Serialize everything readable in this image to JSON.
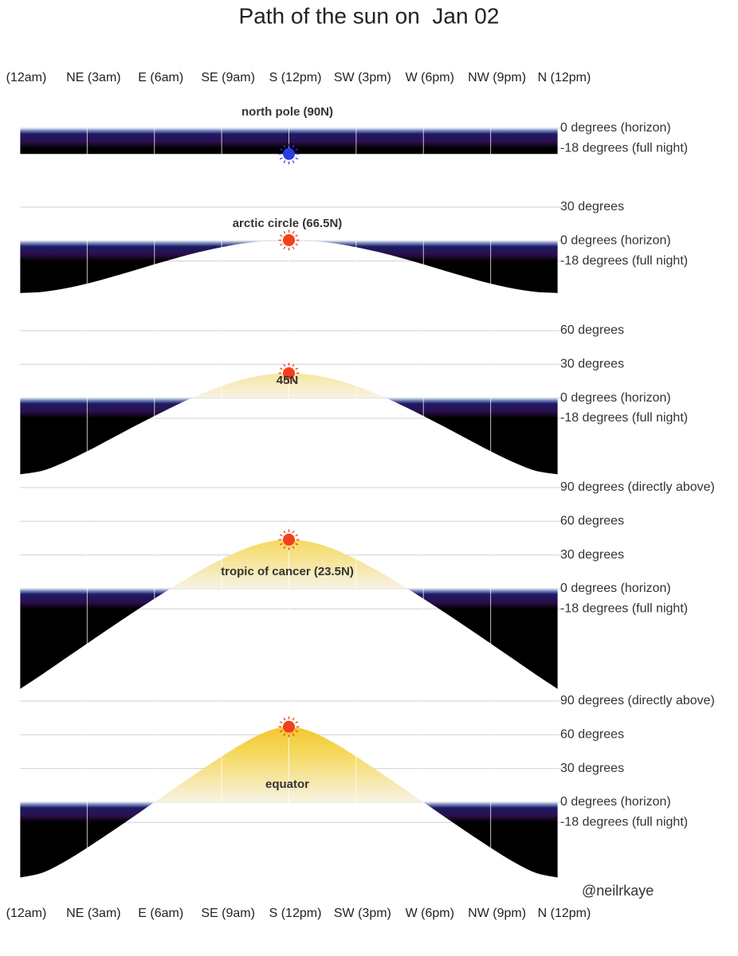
{
  "title": "Path of the sun on  Jan 02",
  "credit": "@neilrkaye",
  "xlim": [
    0,
    24
  ],
  "xticks": [
    {
      "value": 0,
      "label": "(12am)"
    },
    {
      "value": 3,
      "label": "NE (3am)"
    },
    {
      "value": 6,
      "label": "E (6am)"
    },
    {
      "value": 9,
      "label": "SE (9am)"
    },
    {
      "value": 12,
      "label": "S (12pm)"
    },
    {
      "value": 15,
      "label": "SW (3pm)"
    },
    {
      "value": 18,
      "label": "W (6pm)"
    },
    {
      "value": 21,
      "label": "NW (9pm)"
    },
    {
      "value": 24,
      "label": "N (12pm)"
    }
  ],
  "chart_data": [
    {
      "type": "area",
      "title": "north pole (90N)",
      "sun_color": "#2b3fe0",
      "x": [
        0,
        1,
        2,
        3,
        4,
        5,
        6,
        7,
        8,
        9,
        10,
        11,
        12,
        13,
        14,
        15,
        16,
        17,
        18,
        19,
        20,
        21,
        22,
        23,
        24
      ],
      "values": [
        -22.9,
        -22.9,
        -22.9,
        -22.9,
        -22.9,
        -22.9,
        -22.9,
        -22.9,
        -22.9,
        -22.9,
        -22.9,
        -22.9,
        -22.9,
        -22.9,
        -22.9,
        -22.9,
        -22.9,
        -22.9,
        -22.9,
        -22.9,
        -22.9,
        -22.9,
        -22.9,
        -22.9,
        -22.9
      ],
      "ylim": [
        -23,
        0
      ],
      "yticks": [
        {
          "value": 0,
          "label": "0 degrees (horizon)"
        },
        {
          "value": -18,
          "label": "-18 degrees (full night)"
        }
      ]
    },
    {
      "type": "area",
      "title": "arctic circle (66.5N)",
      "sun_color": "#f2401c",
      "x": [
        0,
        1,
        2,
        3,
        4,
        5,
        6,
        7,
        8,
        9,
        10,
        11,
        12,
        13,
        14,
        15,
        16,
        17,
        18,
        19,
        20,
        21,
        22,
        23,
        24
      ],
      "values": [
        -46.4,
        -45.4,
        -42.4,
        -38.1,
        -32.7,
        -26.9,
        -20.9,
        -15.2,
        -10.0,
        -5.6,
        -2.2,
        -0.1,
        0.6,
        -0.1,
        -2.2,
        -5.6,
        -10.0,
        -15.2,
        -20.9,
        -26.9,
        -32.7,
        -38.1,
        -42.4,
        -45.4,
        -46.4
      ],
      "ylim": [
        -46.4,
        30
      ],
      "yticks": [
        {
          "value": 30,
          "label": "30 degrees"
        },
        {
          "value": 0,
          "label": "0 degrees (horizon)"
        },
        {
          "value": -18,
          "label": "-18 degrees (full night)"
        }
      ]
    },
    {
      "type": "area",
      "title": "45N",
      "sun_color": "#f2401c",
      "x": [
        0,
        1,
        2,
        3,
        4,
        5,
        6,
        7,
        8,
        9,
        10,
        11,
        12,
        13,
        14,
        15,
        16,
        17,
        18,
        19,
        20,
        21,
        22,
        23,
        24
      ],
      "values": [
        -67.9,
        -64.7,
        -57.0,
        -47.4,
        -36.9,
        -26.3,
        -16.0,
        -6.1,
        2.9,
        10.7,
        16.8,
        20.7,
        22.1,
        20.7,
        16.8,
        10.7,
        2.9,
        -6.1,
        -16.0,
        -26.3,
        -36.9,
        -47.4,
        -57.0,
        -64.7,
        -67.9
      ],
      "ylim": [
        -67.9,
        60
      ],
      "yticks": [
        {
          "value": 60,
          "label": "60 degrees"
        },
        {
          "value": 30,
          "label": "30 degrees"
        },
        {
          "value": 0,
          "label": "0 degrees (horizon)"
        },
        {
          "value": -18,
          "label": "-18 degrees (full night)"
        }
      ]
    },
    {
      "type": "area",
      "title": "tropic of cancer (23.5N)",
      "sun_color": "#f2401c",
      "x": [
        0,
        1,
        2,
        3,
        4,
        5,
        6,
        7,
        8,
        9,
        10,
        11,
        12,
        13,
        14,
        15,
        16,
        17,
        18,
        19,
        20,
        21,
        22,
        23,
        24
      ],
      "values": [
        -89.4,
        -76.2,
        -62.5,
        -48.8,
        -35.3,
        -21.9,
        -8.9,
        3.6,
        15.5,
        26.2,
        35.2,
        41.4,
        43.6,
        41.4,
        35.2,
        26.2,
        15.5,
        3.6,
        -8.9,
        -21.9,
        -35.3,
        -48.8,
        -62.5,
        -76.2,
        -89.4
      ],
      "ylim": [
        -89.4,
        90
      ],
      "yticks": [
        {
          "value": 90,
          "label": "90 degrees (directly above)"
        },
        {
          "value": 60,
          "label": "60 degrees"
        },
        {
          "value": 30,
          "label": "30 degrees"
        },
        {
          "value": 0,
          "label": "0 degrees (horizon)"
        },
        {
          "value": -18,
          "label": "-18 degrees (full night)"
        }
      ]
    },
    {
      "type": "area",
      "title": "equator",
      "sun_color": "#f2401c",
      "x": [
        0,
        1,
        2,
        3,
        4,
        5,
        6,
        7,
        8,
        9,
        10,
        11,
        12,
        13,
        14,
        15,
        16,
        17,
        18,
        19,
        20,
        21,
        22,
        23,
        24
      ],
      "values": [
        -67.1,
        -62.8,
        -52.9,
        -40.6,
        -27.4,
        -13.8,
        0,
        13.8,
        27.4,
        40.6,
        52.9,
        62.8,
        67.1,
        62.8,
        52.9,
        40.6,
        27.4,
        13.8,
        0,
        -13.8,
        -27.4,
        -40.6,
        -52.9,
        -62.8,
        -67.1
      ],
      "ylim": [
        -67.1,
        90
      ],
      "yticks": [
        {
          "value": 90,
          "label": "90 degrees (directly above)"
        },
        {
          "value": 60,
          "label": "60 degrees"
        },
        {
          "value": 30,
          "label": "30 degrees"
        },
        {
          "value": 0,
          "label": "0 degrees (horizon)"
        },
        {
          "value": -18,
          "label": "-18 degrees (full night)"
        }
      ]
    }
  ]
}
